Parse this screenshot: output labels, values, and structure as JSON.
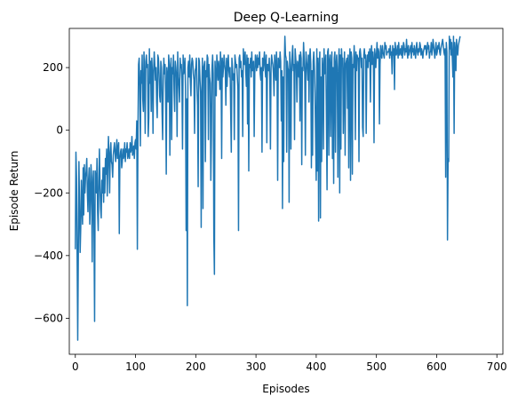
{
  "chart_data": {
    "type": "line",
    "title": "Deep Q-Learning",
    "xlabel": "Episodes",
    "ylabel": "Episode Return",
    "xlim": [
      -10,
      710
    ],
    "ylim": [
      -715,
      325
    ],
    "xticks": [
      0,
      100,
      200,
      300,
      400,
      500,
      600,
      700
    ],
    "yticks": [
      -600,
      -400,
      -200,
      0,
      200
    ],
    "grid": false,
    "legend": "none",
    "series": [
      {
        "color": "#1f77b4",
        "note": "Approximate per-episode return values, 700 episodes, listed in 14 anchor segments of 50 episodes each (x = 0..699).",
        "x_start": 0,
        "x_step": 1,
        "values": [
          -380,
          -70,
          -150,
          -400,
          -670,
          -390,
          -100,
          -240,
          -390,
          -310,
          -160,
          -250,
          -300,
          -120,
          -270,
          -110,
          -200,
          -150,
          -130,
          -90,
          -200,
          -260,
          -160,
          -120,
          -300,
          -230,
          -110,
          -150,
          -420,
          -180,
          -130,
          -330,
          -610,
          -130,
          -150,
          -200,
          -90,
          -260,
          -320,
          -160,
          -60,
          -180,
          -250,
          -280,
          -160,
          -200,
          -120,
          -230,
          -120,
          -200,
          -90,
          -140,
          -60,
          -210,
          -110,
          -20,
          -90,
          -200,
          -70,
          -40,
          -100,
          -110,
          -150,
          -80,
          -60,
          -40,
          -70,
          -100,
          -60,
          -30,
          -90,
          -60,
          -40,
          -330,
          -90,
          -70,
          -60,
          -120,
          -100,
          -60,
          -90,
          -80,
          -40,
          -100,
          -60,
          -70,
          -40,
          -90,
          -80,
          -60,
          -90,
          -40,
          -70,
          -60,
          -20,
          -80,
          -70,
          -50,
          -90,
          -40,
          -30,
          -60,
          30,
          -380,
          -10,
          210,
          230,
          140,
          -50,
          190,
          150,
          240,
          100,
          60,
          250,
          170,
          -10,
          220,
          240,
          200,
          210,
          -20,
          40,
          260,
          150,
          220,
          60,
          230,
          180,
          -10,
          190,
          250,
          210,
          160,
          200,
          90,
          40,
          240,
          230,
          180,
          110,
          90,
          220,
          200,
          60,
          -30,
          160,
          230,
          180,
          210,
          120,
          -140,
          200,
          170,
          90,
          240,
          210,
          -80,
          190,
          230,
          -30,
          200,
          180,
          240,
          130,
          60,
          220,
          200,
          170,
          -20,
          250,
          170,
          140,
          90,
          230,
          200,
          210,
          160,
          -60,
          240,
          180,
          200,
          230,
          130,
          -320,
          100,
          -560,
          200,
          220,
          170,
          240,
          160,
          110,
          210,
          230,
          220,
          180,
          160,
          -10,
          190,
          200,
          230,
          140,
          80,
          -180,
          230,
          220,
          160,
          120,
          -310,
          110,
          230,
          -250,
          200,
          210,
          220,
          -100,
          190,
          170,
          240,
          230,
          -30,
          210,
          170,
          150,
          -160,
          -20,
          200,
          240,
          180,
          -340,
          -460,
          220,
          170,
          110,
          240,
          200,
          160,
          220,
          180,
          130,
          250,
          210,
          -90,
          230,
          170,
          200,
          240,
          210,
          190,
          80,
          230,
          140,
          210,
          240,
          190,
          170,
          200,
          60,
          -70,
          230,
          200,
          160,
          180,
          -30,
          240,
          220,
          200,
          210,
          170,
          130,
          -320,
          230,
          240,
          200,
          220,
          170,
          190,
          -20,
          260,
          220,
          210,
          250,
          190,
          140,
          240,
          20,
          230,
          -130,
          210,
          200,
          230,
          170,
          250,
          190,
          210,
          220,
          -20,
          180,
          240,
          220,
          190,
          240,
          200,
          230,
          210,
          250,
          180,
          160,
          200,
          -70,
          230,
          190,
          220,
          250,
          200,
          170,
          240,
          -40,
          210,
          210,
          190,
          230,
          160,
          -60,
          200,
          240,
          220,
          210,
          180,
          110,
          240,
          200,
          160,
          250,
          190,
          -160,
          230,
          210,
          200,
          250,
          220,
          30,
          190,
          -250,
          170,
          -100,
          200,
          300,
          240,
          230,
          -70,
          220,
          200,
          190,
          -230,
          250,
          210,
          -60,
          180,
          240,
          270,
          190,
          210,
          -30,
          260,
          230,
          200,
          90,
          220,
          210,
          170,
          240,
          30,
          250,
          230,
          -110,
          200,
          190,
          280,
          230,
          180,
          -80,
          250,
          220,
          200,
          160,
          240,
          90,
          230,
          260,
          210,
          -120,
          190,
          -80,
          220,
          250,
          200,
          120,
          -20,
          -160,
          260,
          -130,
          230,
          -290,
          200,
          250,
          -280,
          170,
          -100,
          230,
          200,
          -60,
          260,
          180,
          210,
          240,
          20,
          -190,
          250,
          260,
          -80,
          220,
          240,
          -20,
          200,
          250,
          -90,
          200,
          -170,
          230,
          250,
          -70,
          210,
          240,
          170,
          -150,
          200,
          260,
          -200,
          240,
          -60,
          260,
          220,
          230,
          -10,
          170,
          250,
          -80,
          210,
          220,
          230,
          70,
          240,
          -120,
          200,
          260,
          -160,
          250,
          230,
          -140,
          210,
          200,
          270,
          220,
          -30,
          250,
          190,
          240,
          230,
          230,
          -100,
          250,
          260,
          240,
          200,
          230,
          10,
          -20,
          240,
          260,
          230,
          240,
          -10,
          210,
          240,
          200,
          250,
          220,
          260,
          90,
          240,
          270,
          210,
          250,
          220,
          -40,
          260,
          240,
          200,
          240,
          280,
          230,
          260,
          250,
          20,
          210,
          270,
          240,
          230,
          270,
          250,
          240,
          230,
          280,
          260,
          270,
          240,
          250,
          250,
          250,
          260,
          230,
          270,
          240,
          250,
          180,
          270,
          240,
          260,
          130,
          280,
          260,
          240,
          250,
          270,
          230,
          280,
          240,
          250,
          260,
          240,
          270,
          230,
          250,
          280,
          270,
          240,
          260,
          250,
          290,
          250,
          230,
          270,
          240,
          250,
          260,
          270,
          230,
          280,
          250,
          260,
          240,
          270,
          250,
          230,
          260,
          280,
          250,
          240,
          260,
          250,
          280,
          270,
          240,
          260,
          250,
          230,
          250,
          260,
          270,
          260,
          270,
          240,
          250,
          280,
          260,
          270,
          230,
          250,
          250,
          280,
          240,
          260,
          290,
          270,
          250,
          230,
          260,
          280,
          240,
          250,
          270,
          260,
          280,
          250,
          240,
          260,
          270,
          280,
          290,
          270,
          250,
          240,
          260,
          -150,
          280,
          250,
          -350,
          -90,
          -100,
          300,
          260,
          290,
          240,
          280,
          230,
          170,
          300,
          -10,
          280,
          250,
          190,
          290,
          260,
          240,
          270,
          280,
          290,
          300
        ]
      }
    ]
  }
}
